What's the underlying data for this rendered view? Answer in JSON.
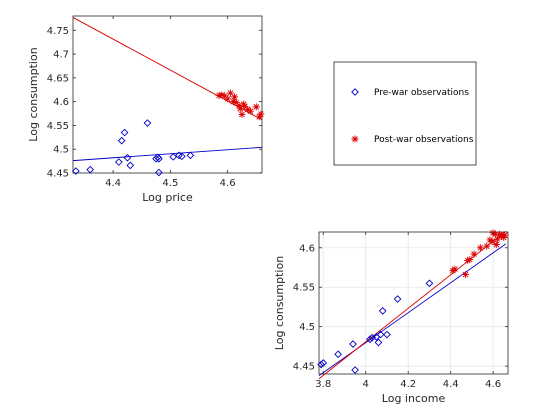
{
  "colors": {
    "prewar": "#0000cc",
    "postwar": "#dd0000",
    "axis": "#262626",
    "grid": "#e6e6e6"
  },
  "legend": {
    "location": "right-middle",
    "entries": [
      {
        "label": "Pre-war observations",
        "series": "prewar",
        "marker": "diamond"
      },
      {
        "label": "Post-war observations",
        "series": "postwar",
        "marker": "star"
      }
    ]
  },
  "chart_data": [
    {
      "type": "scatter",
      "xlabel": "Log price",
      "ylabel": "Log consumption",
      "xlim": [
        4.33,
        4.66
      ],
      "ylim": [
        4.45,
        4.78
      ],
      "xticks": [
        "4.4",
        "4.5",
        "4.6"
      ],
      "yticks": [
        "4.45",
        "4.5",
        "4.55",
        "4.6",
        "4.65",
        "4.7",
        "4.75"
      ],
      "grid": false,
      "series": [
        {
          "key": "prewar",
          "marker": "diamond",
          "x": [
            4.335,
            4.36,
            4.41,
            4.415,
            4.42,
            4.425,
            4.43,
            4.46,
            4.475,
            4.478,
            4.48,
            4.48,
            4.505,
            4.515,
            4.52,
            4.535
          ],
          "y": [
            4.454,
            4.457,
            4.473,
            4.518,
            4.535,
            4.482,
            4.466,
            4.555,
            4.48,
            4.483,
            4.48,
            4.451,
            4.484,
            4.487,
            4.485,
            4.487
          ]
        },
        {
          "key": "postwar",
          "marker": "star",
          "x": [
            4.585,
            4.59,
            4.595,
            4.6,
            4.605,
            4.61,
            4.612,
            4.615,
            4.62,
            4.622,
            4.625,
            4.628,
            4.63,
            4.635,
            4.64,
            4.65,
            4.655,
            4.658
          ],
          "y": [
            4.613,
            4.614,
            4.612,
            4.606,
            4.618,
            4.6,
            4.61,
            4.598,
            4.592,
            4.585,
            4.573,
            4.595,
            4.59,
            4.584,
            4.58,
            4.589,
            4.568,
            4.574
          ]
        }
      ],
      "fit_lines": [
        {
          "key": "prewar",
          "x": [
            4.33,
            4.66
          ],
          "y": [
            4.476,
            4.504
          ]
        },
        {
          "key": "postwar",
          "x": [
            4.33,
            4.66
          ],
          "y": [
            4.777,
            4.562
          ]
        }
      ]
    },
    {
      "type": "scatter",
      "xlabel": "Log income",
      "ylabel": "Log consumption",
      "xlim": [
        3.78,
        4.67
      ],
      "ylim": [
        4.44,
        4.62
      ],
      "xticks": [
        "3.8",
        "4",
        "4.2",
        "4.4",
        "4.6"
      ],
      "yticks": [
        "4.45",
        "4.5",
        "4.55",
        "4.6"
      ],
      "grid": true,
      "series": [
        {
          "key": "prewar",
          "marker": "diamond",
          "x": [
            3.79,
            3.8,
            3.87,
            3.94,
            3.95,
            4.02,
            4.03,
            4.05,
            4.06,
            4.07,
            4.08,
            4.1,
            4.15,
            4.3
          ],
          "y": [
            4.452,
            4.454,
            4.465,
            4.478,
            4.445,
            4.484,
            4.486,
            4.487,
            4.48,
            4.49,
            4.52,
            4.49,
            4.535,
            4.555
          ]
        },
        {
          "key": "postwar",
          "marker": "star",
          "x": [
            4.41,
            4.42,
            4.47,
            4.48,
            4.49,
            4.51,
            4.54,
            4.57,
            4.585,
            4.595,
            4.6,
            4.61,
            4.615,
            4.62,
            4.63,
            4.64,
            4.65,
            4.655
          ],
          "y": [
            4.571,
            4.573,
            4.566,
            4.584,
            4.585,
            4.592,
            4.6,
            4.602,
            4.61,
            4.608,
            4.619,
            4.617,
            4.604,
            4.611,
            4.617,
            4.615,
            4.613,
            4.616
          ]
        }
      ],
      "fit_lines": [
        {
          "key": "prewar",
          "x": [
            3.78,
            4.66
          ],
          "y": [
            4.438,
            4.605
          ]
        },
        {
          "key": "postwar",
          "x": [
            3.78,
            4.66
          ],
          "y": [
            4.434,
            4.621
          ]
        }
      ]
    }
  ]
}
